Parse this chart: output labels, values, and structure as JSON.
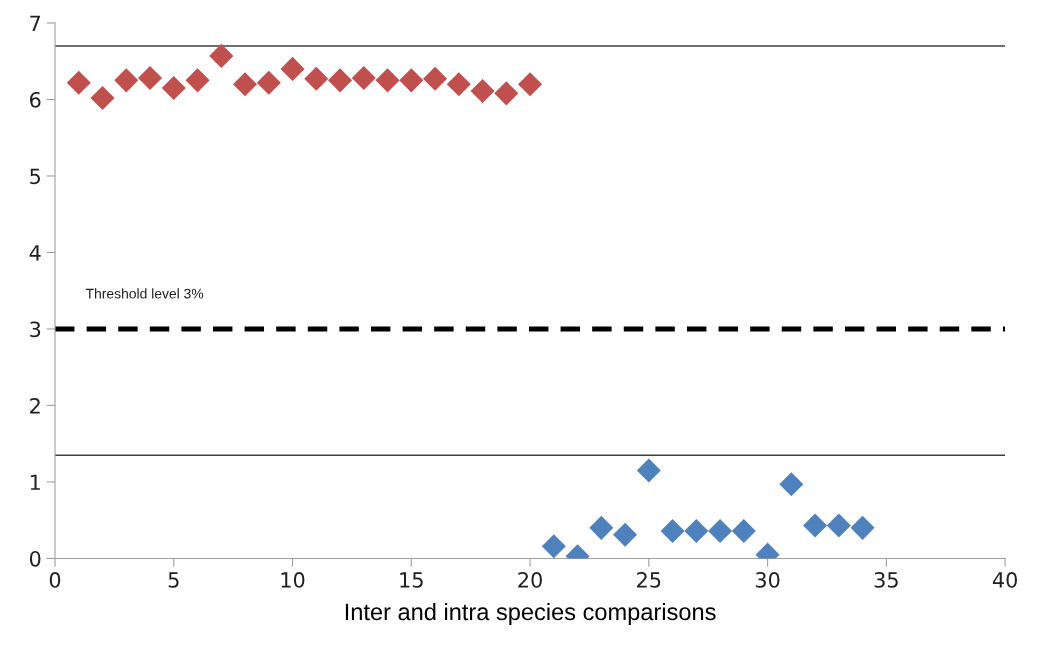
{
  "chart_data": {
    "type": "scatter",
    "xlabel": "Inter and intra species comparisons",
    "series": [
      {
        "color": "#c0504d",
        "x": [
          1,
          2,
          3,
          4,
          5,
          6,
          7,
          8,
          9,
          10,
          11,
          12,
          13,
          14,
          15,
          16,
          17,
          18,
          19,
          20
        ],
        "values": [
          6.22,
          6.02,
          6.25,
          6.28,
          6.15,
          6.25,
          6.57,
          6.2,
          6.22,
          6.4,
          6.27,
          6.25,
          6.28,
          6.25,
          6.25,
          6.27,
          6.2,
          6.11,
          6.08,
          6.2
        ]
      },
      {
        "color": "#4f81bd",
        "x": [
          21,
          22,
          23,
          24,
          25,
          26,
          27,
          28,
          29,
          30,
          31,
          32,
          33,
          34
        ],
        "values": [
          0.16,
          0.03,
          0.4,
          0.31,
          1.15,
          0.36,
          0.36,
          0.36,
          0.36,
          0.05,
          0.97,
          0.43,
          0.43,
          0.4
        ]
      }
    ],
    "marker": "diamond",
    "xlim": [
      0,
      40
    ],
    "xticks": [
      0,
      5,
      10,
      15,
      20,
      25,
      30,
      35,
      40
    ],
    "ylim": [
      0,
      7
    ],
    "yticks": [
      0,
      1,
      2,
      3,
      4,
      5,
      6,
      7
    ],
    "ref_lines": [
      {
        "axis": "y",
        "value": 6.7,
        "color": "#404040",
        "line_style": "solid"
      },
      {
        "axis": "y",
        "value": 3,
        "label": "Threshold level 3%",
        "color": "#000000",
        "line_style": "dashed"
      },
      {
        "axis": "y",
        "value": 1.35,
        "color": "#404040",
        "line_style": "solid"
      }
    ]
  }
}
